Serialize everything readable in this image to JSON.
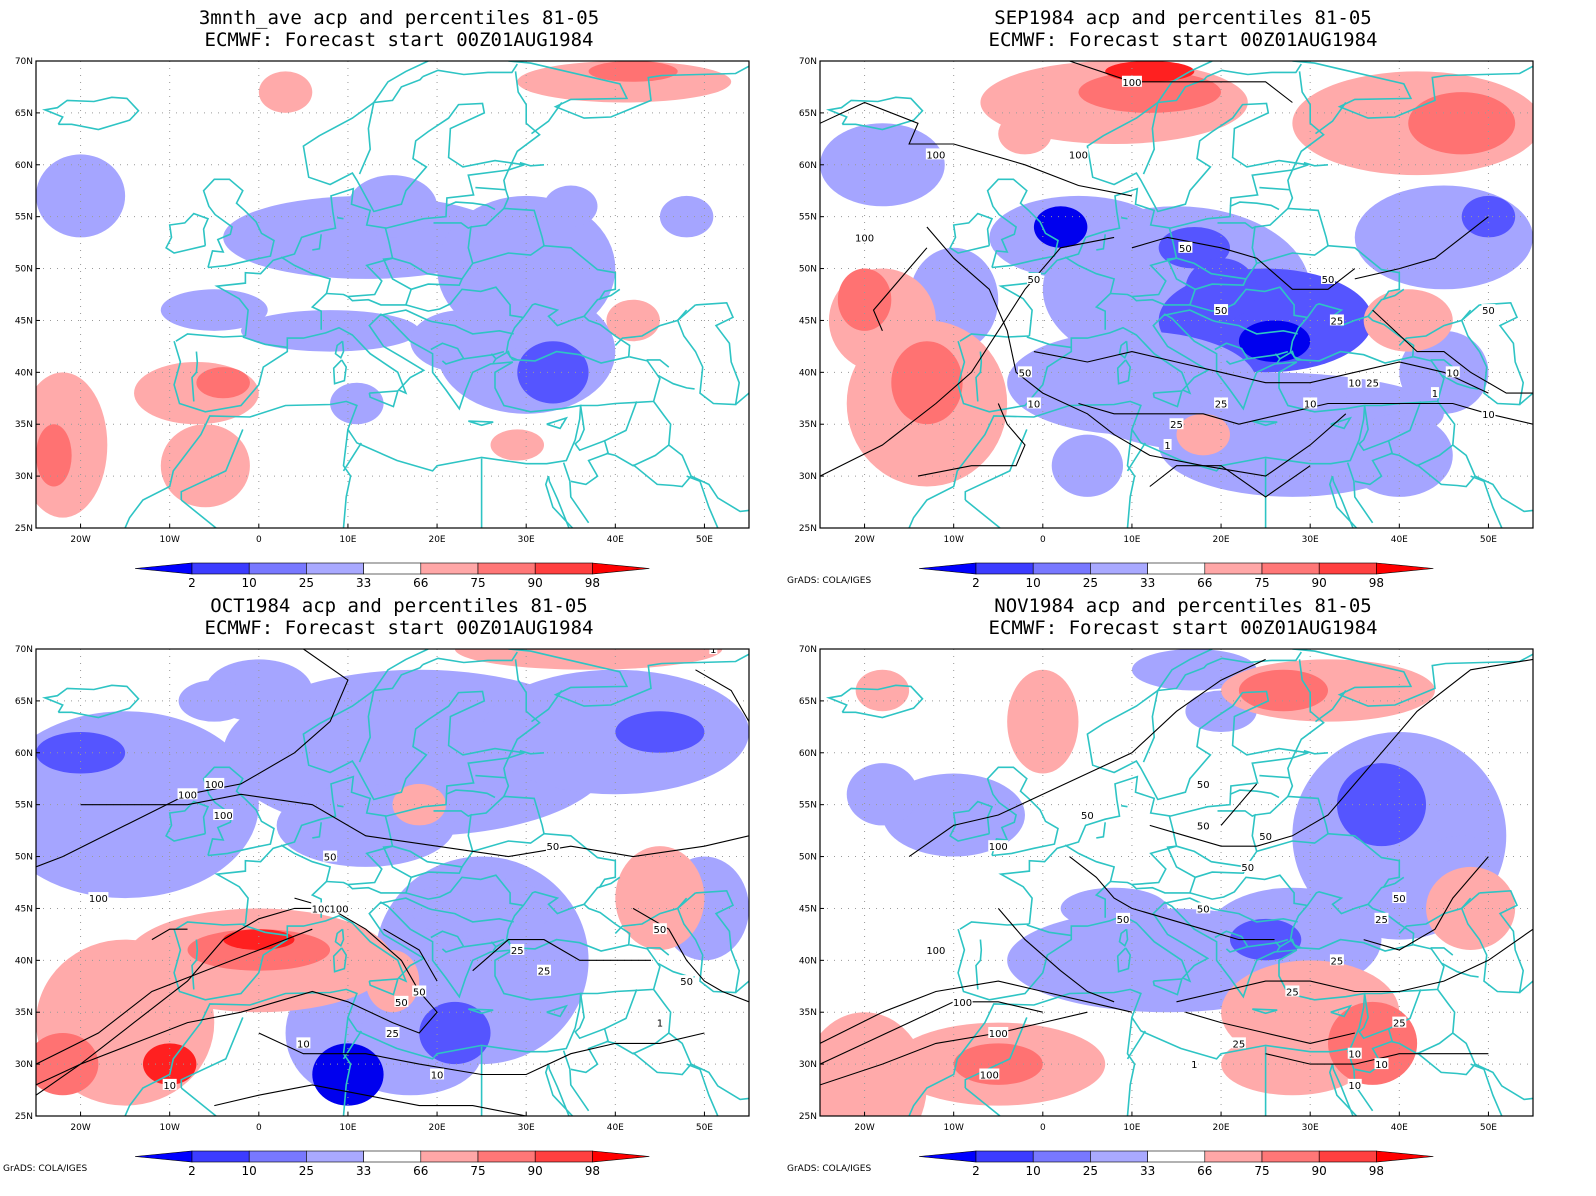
{
  "panels": [
    {
      "id": "p1",
      "title_line1": "3mnth_ave acp and percentiles 81-05",
      "title_line2": "ECMWF: Forecast start 00Z01AUG1984",
      "credit": "",
      "contour_labels": []
    },
    {
      "id": "p2",
      "title_line1": "SEP1984 acp and percentiles 81-05",
      "title_line2": "ECMWF: Forecast start 00Z01AUG1984",
      "credit": "GrADS: COLA/IGES",
      "contour_labels": [
        "100",
        "100",
        "100",
        "100",
        "50",
        "50",
        "50",
        "50",
        "50",
        "50",
        "25",
        "25",
        "25",
        "25",
        "10",
        "10",
        "10",
        "10",
        "10",
        "1",
        "1"
      ]
    },
    {
      "id": "p3",
      "title_line1": "OCT1984 acp and percentiles 81-05",
      "title_line2": "ECMWF: Forecast start 00Z01AUG1984",
      "credit": "GrADS: COLA/IGES",
      "contour_labels": [
        "100",
        "100",
        "100",
        "100",
        "100",
        "100",
        "50",
        "50",
        "50",
        "50",
        "50",
        "50",
        "25",
        "25",
        "25",
        "10",
        "10",
        "10",
        "1",
        "1"
      ]
    },
    {
      "id": "p4",
      "title_line1": "NOV1984 acp and percentiles 81-05",
      "title_line2": "ECMWF: Forecast start 00Z01AUG1984",
      "credit": "GrADS: COLA/IGES",
      "contour_labels": [
        "100",
        "100",
        "100",
        "100",
        "100",
        "50",
        "50",
        "50",
        "50",
        "50",
        "50",
        "50",
        "50",
        "25",
        "25",
        "25",
        "25",
        "25",
        "10",
        "10",
        "10",
        "1"
      ]
    }
  ],
  "lat_labels": [
    "70N",
    "65N",
    "60N",
    "55N",
    "50N",
    "45N",
    "40N",
    "35N",
    "30N",
    "25N"
  ],
  "lon_labels": [
    "20W",
    "10W",
    "0",
    "10E",
    "20E",
    "30E",
    "40E",
    "50E"
  ],
  "colorbar": {
    "labels": [
      "2",
      "10",
      "25",
      "33",
      "66",
      "75",
      "90",
      "98"
    ],
    "colors": [
      "#0000ff",
      "#3c3cff",
      "#7878ff",
      "#a9a9ff",
      "#ffffff",
      "#ffa7a7",
      "#ff7777",
      "#ff4040",
      "#ff0000"
    ]
  },
  "colors": {
    "coastline": "#2ec4c4",
    "grid": "#9a9a9a",
    "contour": "#000000",
    "blue_strong": "#0000ee",
    "blue_mid": "#5555ff",
    "blue_light": "#a5a5ff",
    "red_light": "#ffaaaa",
    "red_mid": "#ff7272",
    "red_strong": "#ff2020"
  }
}
